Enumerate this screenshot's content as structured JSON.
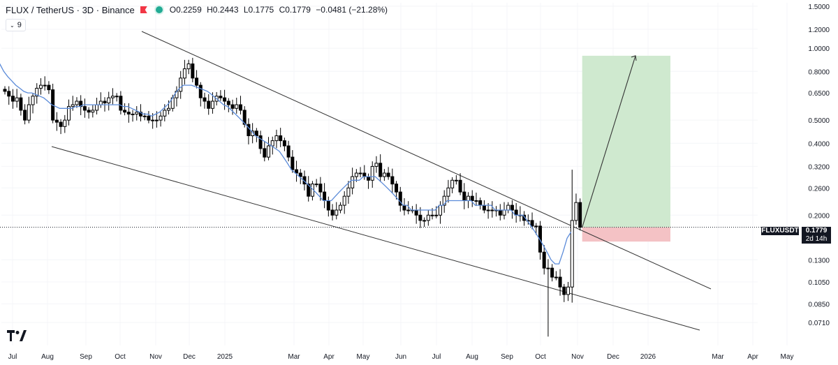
{
  "header": {
    "symbol_line": "FLUX / TetherUS · 3D · Binance",
    "ohlc": [
      "O0.2259",
      "H0.2443",
      "L0.1775",
      "C0.1779",
      "−0.0481 (−21.28%)"
    ]
  },
  "indicator_badge": "9",
  "price_tag": {
    "symbol": "FLUXUSDT",
    "price": "0.1779",
    "countdown": "2d 14h"
  },
  "colors": {
    "up": "#000000",
    "down": "#000000",
    "ma": "#5b8bd9",
    "target_zone": "#cfe9cf",
    "stop_zone": "#f4c2c5",
    "trendline": "#333333"
  },
  "chart_data": {
    "type": "candlestick",
    "scale": "log",
    "y_ticks": [
      "1.5000",
      "1.2000",
      "1.0000",
      "0.8000",
      "0.6500",
      "0.5000",
      "0.4000",
      "0.3200",
      "0.2600",
      "0.2000",
      "0.1300",
      "0.1050",
      "0.0850",
      "0.0710"
    ],
    "x_ticks": [
      "Jul",
      "Aug",
      "Sep",
      "Oct",
      "Nov",
      "Dec",
      "2025",
      "Mar",
      "Apr",
      "May",
      "Jun",
      "Jul",
      "Aug",
      "Sep",
      "Oct",
      "Nov",
      "Dec",
      "2026",
      "Mar",
      "Apr",
      "May"
    ],
    "ylim": [
      0.066,
      1.55
    ],
    "close": [
      0.66,
      0.63,
      0.6,
      0.62,
      0.55,
      0.5,
      0.58,
      0.63,
      0.68,
      0.7,
      0.7,
      0.67,
      0.5,
      0.49,
      0.47,
      0.5,
      0.57,
      0.58,
      0.6,
      0.57,
      0.55,
      0.54,
      0.55,
      0.58,
      0.6,
      0.59,
      0.62,
      0.63,
      0.63,
      0.55,
      0.54,
      0.53,
      0.53,
      0.54,
      0.52,
      0.52,
      0.5,
      0.5,
      0.5,
      0.52,
      0.55,
      0.56,
      0.62,
      0.66,
      0.75,
      0.82,
      0.86,
      0.75,
      0.7,
      0.62,
      0.6,
      0.56,
      0.6,
      0.63,
      0.62,
      0.6,
      0.58,
      0.56,
      0.58,
      0.55,
      0.48,
      0.43,
      0.45,
      0.43,
      0.38,
      0.35,
      0.39,
      0.41,
      0.43,
      0.41,
      0.39,
      0.35,
      0.31,
      0.3,
      0.29,
      0.27,
      0.24,
      0.27,
      0.27,
      0.25,
      0.23,
      0.21,
      0.2,
      0.21,
      0.22,
      0.24,
      0.26,
      0.29,
      0.3,
      0.3,
      0.29,
      0.28,
      0.32,
      0.33,
      0.29,
      0.3,
      0.29,
      0.27,
      0.25,
      0.22,
      0.21,
      0.21,
      0.21,
      0.2,
      0.19,
      0.19,
      0.2,
      0.2,
      0.2,
      0.22,
      0.24,
      0.26,
      0.28,
      0.28,
      0.25,
      0.23,
      0.24,
      0.23,
      0.23,
      0.22,
      0.21,
      0.21,
      0.21,
      0.21,
      0.2,
      0.21,
      0.22,
      0.21,
      0.2,
      0.2,
      0.19,
      0.19,
      0.18,
      0.18,
      0.14,
      0.12,
      0.12,
      0.11,
      0.11,
      0.1,
      0.093,
      0.1,
      0.19,
      0.2259,
      0.1779
    ],
    "ma_period": 9,
    "ma": [
      0.92,
      0.86,
      0.8,
      0.76,
      0.73,
      0.7,
      0.68,
      0.66,
      0.65,
      0.65,
      0.64,
      0.63,
      0.62,
      0.6,
      0.58,
      0.57,
      0.56,
      0.56,
      0.56,
      0.56,
      0.57,
      0.57,
      0.58,
      0.58,
      0.58,
      0.58,
      0.58,
      0.58,
      0.58,
      0.58,
      0.58,
      0.58,
      0.57,
      0.57,
      0.56,
      0.55,
      0.54,
      0.53,
      0.53,
      0.52,
      0.53,
      0.54,
      0.56,
      0.58,
      0.61,
      0.65,
      0.68,
      0.7,
      0.7,
      0.7,
      0.69,
      0.68,
      0.67,
      0.66,
      0.64,
      0.62,
      0.6,
      0.58,
      0.57,
      0.55,
      0.53,
      0.51,
      0.49,
      0.47,
      0.45,
      0.43,
      0.42,
      0.41,
      0.4,
      0.39,
      0.38,
      0.37,
      0.35,
      0.33,
      0.31,
      0.3,
      0.29,
      0.28,
      0.27,
      0.26,
      0.25,
      0.24,
      0.23,
      0.23,
      0.23,
      0.24,
      0.25,
      0.26,
      0.27,
      0.28,
      0.28,
      0.28,
      0.29,
      0.29,
      0.29,
      0.29,
      0.28,
      0.27,
      0.26,
      0.25,
      0.24,
      0.23,
      0.22,
      0.22,
      0.21,
      0.21,
      0.21,
      0.21,
      0.21,
      0.21,
      0.21,
      0.22,
      0.22,
      0.23,
      0.23,
      0.23,
      0.23,
      0.23,
      0.23,
      0.23,
      0.22,
      0.22,
      0.22,
      0.22,
      0.22,
      0.21,
      0.21,
      0.21,
      0.21,
      0.21,
      0.2,
      0.2,
      0.2,
      0.19,
      0.18,
      0.17,
      0.16,
      0.15,
      0.14,
      0.13,
      0.125,
      0.125,
      0.14,
      0.16,
      0.17
    ],
    "events": [
      {
        "type": "spike",
        "low": 0.062,
        "high": 0.31
      }
    ],
    "trade_setup": {
      "entry": 0.1779,
      "stop": 0.155,
      "target": 0.93
    },
    "current_price": 0.1779
  }
}
